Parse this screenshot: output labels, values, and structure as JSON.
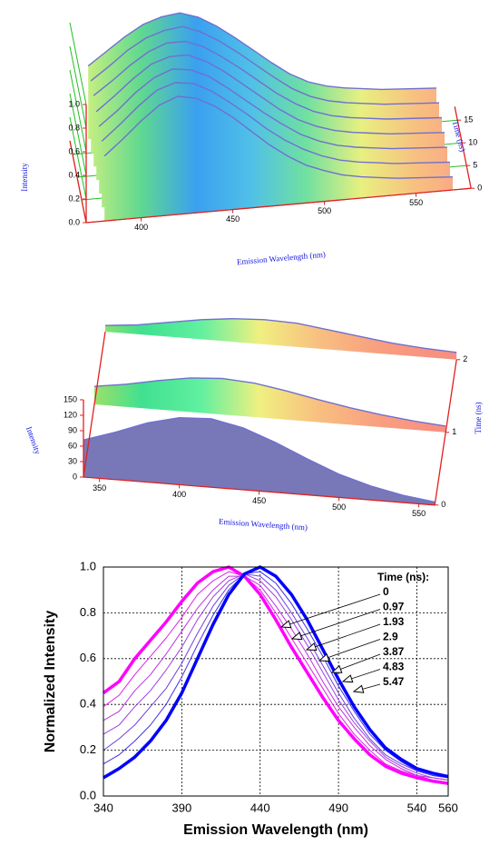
{
  "chart_data": [
    {
      "type": "surface3d",
      "xlabel": "Emission Wavelength (nm)",
      "ylabel": "Intensity",
      "zlabel": "Time (ns)",
      "xlim": [
        370,
        580
      ],
      "ylim": [
        0,
        1
      ],
      "zlim": [
        0,
        18
      ],
      "xticks": [
        400,
        450,
        500,
        550
      ],
      "yticks": [
        {
          "value": 0,
          "label": "0.0"
        },
        0.2,
        0.4,
        0.6,
        0.8,
        {
          "value": 1,
          "label": "1.0"
        }
      ],
      "zticks": [
        0,
        5,
        10,
        15
      ],
      "grid": true,
      "grid_color": "#20c020",
      "axis_color": "#e02020",
      "line_color": "#7070d0",
      "colormap": [
        "#c8f080",
        "#60d890",
        "#3aa0f0",
        "#50c0e8",
        "#70e0a0",
        "#e8f080",
        "#f8c080",
        "#f8a088"
      ],
      "x": [
        380,
        390,
        400,
        410,
        420,
        430,
        440,
        450,
        460,
        470,
        480,
        490,
        500,
        510,
        520,
        530,
        540,
        550,
        560,
        570
      ],
      "z": [
        0,
        3,
        6,
        9,
        12,
        15,
        18
      ],
      "values": [
        [
          0.55,
          0.68,
          0.82,
          0.94,
          1.0,
          0.97,
          0.89,
          0.78,
          0.65,
          0.52,
          0.41,
          0.32,
          0.26,
          0.21,
          0.18,
          0.16,
          0.14,
          0.13,
          0.12,
          0.11
        ],
        [
          0.56,
          0.69,
          0.83,
          0.95,
          1.0,
          0.98,
          0.9,
          0.79,
          0.67,
          0.54,
          0.43,
          0.34,
          0.27,
          0.22,
          0.19,
          0.17,
          0.15,
          0.14,
          0.13,
          0.12
        ],
        [
          0.57,
          0.69,
          0.83,
          0.94,
          1.0,
          0.98,
          0.91,
          0.8,
          0.68,
          0.56,
          0.45,
          0.35,
          0.28,
          0.23,
          0.2,
          0.18,
          0.16,
          0.15,
          0.14,
          0.13
        ],
        [
          0.58,
          0.7,
          0.83,
          0.94,
          0.99,
          0.99,
          0.92,
          0.82,
          0.7,
          0.58,
          0.46,
          0.36,
          0.29,
          0.24,
          0.21,
          0.19,
          0.17,
          0.16,
          0.15,
          0.14
        ],
        [
          0.6,
          0.71,
          0.83,
          0.93,
          0.99,
          0.99,
          0.93,
          0.83,
          0.72,
          0.6,
          0.48,
          0.38,
          0.3,
          0.25,
          0.22,
          0.2,
          0.18,
          0.17,
          0.16,
          0.15
        ],
        [
          0.61,
          0.72,
          0.84,
          0.93,
          0.98,
          1.0,
          0.94,
          0.85,
          0.74,
          0.62,
          0.5,
          0.39,
          0.31,
          0.26,
          0.23,
          0.21,
          0.19,
          0.18,
          0.17,
          0.16
        ],
        [
          0.62,
          0.73,
          0.84,
          0.93,
          0.98,
          1.0,
          0.95,
          0.86,
          0.75,
          0.63,
          0.51,
          0.4,
          0.32,
          0.27,
          0.24,
          0.22,
          0.2,
          0.19,
          0.18,
          0.17
        ]
      ]
    },
    {
      "type": "surface3d",
      "xlabel": "Emission Wavelength (nm)",
      "ylabel": "Intensity",
      "zlabel": "Time (ns)",
      "xlim": [
        340,
        560
      ],
      "ylim": [
        0,
        150
      ],
      "zlim": [
        0,
        2
      ],
      "xticks": [
        350,
        400,
        450,
        500,
        550
      ],
      "yticks": [
        0,
        30,
        60,
        90,
        120,
        150
      ],
      "zticks": [
        0,
        1,
        2
      ],
      "grid": false,
      "axis_color": "#e02020",
      "line_color": "#7070d0",
      "front_color": "#7878b8",
      "colormap": [
        "#b0e060",
        "#40e090",
        "#60f0a0",
        "#f0f080",
        "#f8c080",
        "#f8a080",
        "#f89080"
      ],
      "x": [
        340,
        360,
        380,
        400,
        420,
        440,
        460,
        480,
        500,
        520,
        540,
        560
      ],
      "z": [
        0,
        1,
        2
      ],
      "values": [
        [
          72,
          92,
          115,
          130,
          133,
          120,
          97,
          70,
          45,
          27,
          14,
          6
        ],
        [
          35,
          44,
          56,
          66,
          70,
          66,
          56,
          44,
          33,
          24,
          17,
          12
        ],
        [
          12,
          18,
          28,
          38,
          45,
          48,
          46,
          38,
          30,
          22,
          17,
          14
        ]
      ]
    },
    {
      "type": "line",
      "xlabel": "Emission Wavelength (nm)",
      "ylabel": "Normalized Intensity",
      "legend_title": "Time (ns):",
      "xlim": [
        340,
        560
      ],
      "ylim": [
        0,
        1
      ],
      "xticks": [
        340,
        390,
        440,
        490,
        540,
        560
      ],
      "yticks": [
        {
          "value": 0,
          "label": "0.0"
        },
        0.2,
        0.4,
        0.6,
        0.8,
        {
          "value": 1,
          "label": "1.0"
        }
      ],
      "grid": true,
      "x": [
        340,
        350,
        360,
        370,
        380,
        390,
        400,
        410,
        420,
        430,
        440,
        450,
        460,
        470,
        480,
        490,
        500,
        510,
        520,
        530,
        540,
        550,
        560
      ],
      "series": [
        {
          "name": "0",
          "color": "#ff00ff",
          "line_width": 3.5,
          "values": [
            0.45,
            0.5,
            0.6,
            0.68,
            0.76,
            0.85,
            0.93,
            0.98,
            1.0,
            0.96,
            0.88,
            0.77,
            0.65,
            0.54,
            0.43,
            0.33,
            0.25,
            0.18,
            0.13,
            0.1,
            0.08,
            0.065,
            0.055
          ]
        },
        {
          "name": "0.97",
          "color": "#e020e8",
          "line_width": 1,
          "values": [
            0.39,
            0.44,
            0.53,
            0.61,
            0.69,
            0.78,
            0.88,
            0.94,
            0.98,
            0.96,
            0.9,
            0.8,
            0.69,
            0.58,
            0.47,
            0.36,
            0.27,
            0.2,
            0.14,
            0.11,
            0.09,
            0.07,
            0.06
          ]
        },
        {
          "name": "1.93",
          "color": "#c030e0",
          "line_width": 1,
          "values": [
            0.33,
            0.37,
            0.46,
            0.53,
            0.62,
            0.72,
            0.82,
            0.9,
            0.96,
            0.96,
            0.92,
            0.83,
            0.73,
            0.62,
            0.5,
            0.39,
            0.3,
            0.22,
            0.16,
            0.12,
            0.09,
            0.08,
            0.07
          ]
        },
        {
          "name": "2.9",
          "color": "#a040e0",
          "line_width": 1,
          "values": [
            0.27,
            0.31,
            0.39,
            0.46,
            0.55,
            0.65,
            0.77,
            0.87,
            0.94,
            0.97,
            0.94,
            0.87,
            0.77,
            0.66,
            0.54,
            0.42,
            0.32,
            0.24,
            0.17,
            0.13,
            0.1,
            0.08,
            0.07
          ]
        },
        {
          "name": "3.87",
          "color": "#7040e0",
          "line_width": 1,
          "values": [
            0.2,
            0.25,
            0.31,
            0.39,
            0.47,
            0.58,
            0.71,
            0.83,
            0.92,
            0.97,
            0.96,
            0.9,
            0.8,
            0.69,
            0.57,
            0.45,
            0.34,
            0.25,
            0.18,
            0.14,
            0.11,
            0.09,
            0.08
          ]
        },
        {
          "name": "4.83",
          "color": "#4030e8",
          "line_width": 1,
          "values": [
            0.14,
            0.18,
            0.24,
            0.31,
            0.4,
            0.52,
            0.66,
            0.79,
            0.9,
            0.97,
            0.98,
            0.93,
            0.84,
            0.73,
            0.61,
            0.48,
            0.37,
            0.27,
            0.2,
            0.15,
            0.11,
            0.09,
            0.08
          ]
        },
        {
          "name": "5.47",
          "color": "#0000ff",
          "line_width": 3.5,
          "values": [
            0.08,
            0.12,
            0.17,
            0.24,
            0.33,
            0.45,
            0.6,
            0.75,
            0.88,
            0.97,
            1.0,
            0.96,
            0.88,
            0.77,
            0.64,
            0.51,
            0.39,
            0.29,
            0.21,
            0.16,
            0.12,
            0.1,
            0.085
          ]
        }
      ]
    }
  ]
}
